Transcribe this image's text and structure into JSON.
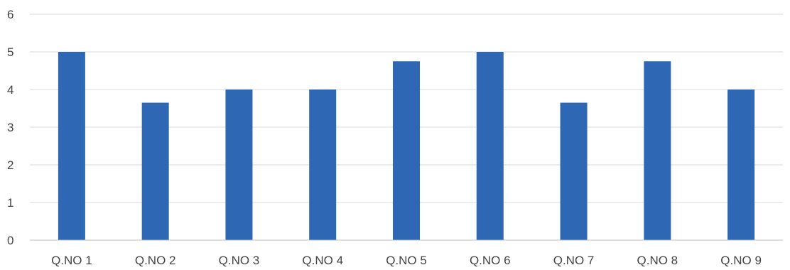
{
  "chart_data": {
    "type": "bar",
    "title": "",
    "xlabel": "",
    "ylabel": "",
    "categories": [
      "Q.NO 1",
      "Q.NO 2",
      "Q.NO 3",
      "Q.NO 4",
      "Q.NO 5",
      "Q.NO 6",
      "Q.NO 7",
      "Q.NO 8",
      "Q.NO 9"
    ],
    "values": [
      5.0,
      3.65,
      4.0,
      4.0,
      4.75,
      5.0,
      3.65,
      4.75,
      4.0
    ],
    "ylim": [
      0,
      6
    ],
    "yticks": [
      "0",
      "1",
      "2",
      "3",
      "4",
      "5",
      "6"
    ],
    "grid": true,
    "legend": "none",
    "bar_color": "#2e68b5",
    "grid_color": "#d9d9d9"
  }
}
